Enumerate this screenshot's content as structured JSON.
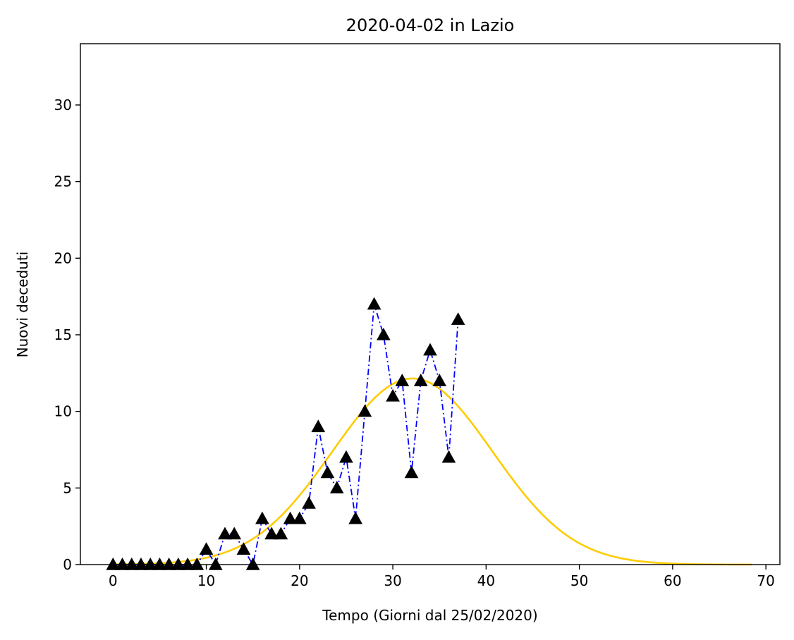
{
  "chart_data": {
    "type": "line",
    "title": "2020-04-02 in Lazio",
    "xlabel": "Tempo (Giorni dal 25/02/2020)",
    "ylabel": "Nuovi deceduti",
    "xlim": [
      -3.5,
      71.5
    ],
    "ylim": [
      0,
      34
    ],
    "xticks": [
      0,
      10,
      20,
      30,
      40,
      50,
      60,
      70
    ],
    "yticks": [
      0,
      5,
      10,
      15,
      20,
      25,
      30
    ],
    "grid": false,
    "series": [
      {
        "style": "dash-dot line with triangle markers",
        "line_color": "#0000ff",
        "marker_color": "#000000",
        "x": [
          0,
          1,
          2,
          3,
          4,
          5,
          6,
          7,
          8,
          9,
          10,
          11,
          12,
          13,
          14,
          15,
          16,
          17,
          18,
          19,
          20,
          21,
          22,
          23,
          24,
          25,
          26,
          27,
          28,
          29,
          30,
          31,
          32,
          33,
          34,
          35,
          36,
          37
        ],
        "y": [
          0,
          0,
          0,
          0,
          0,
          0,
          0,
          0,
          0,
          0,
          1,
          0,
          2,
          2,
          1,
          0,
          3,
          2,
          2,
          3,
          3,
          4,
          9,
          6,
          5,
          7,
          3,
          10,
          17,
          15,
          11,
          12,
          6,
          12,
          14,
          12,
          7,
          16
        ]
      },
      {
        "style": "fitted gaussian curve",
        "color": "#ffcc00",
        "model": {
          "peak": 12.15,
          "center": 32.1,
          "sigma": 8.6,
          "x_start": 0,
          "x_end": 68.5
        }
      }
    ]
  }
}
